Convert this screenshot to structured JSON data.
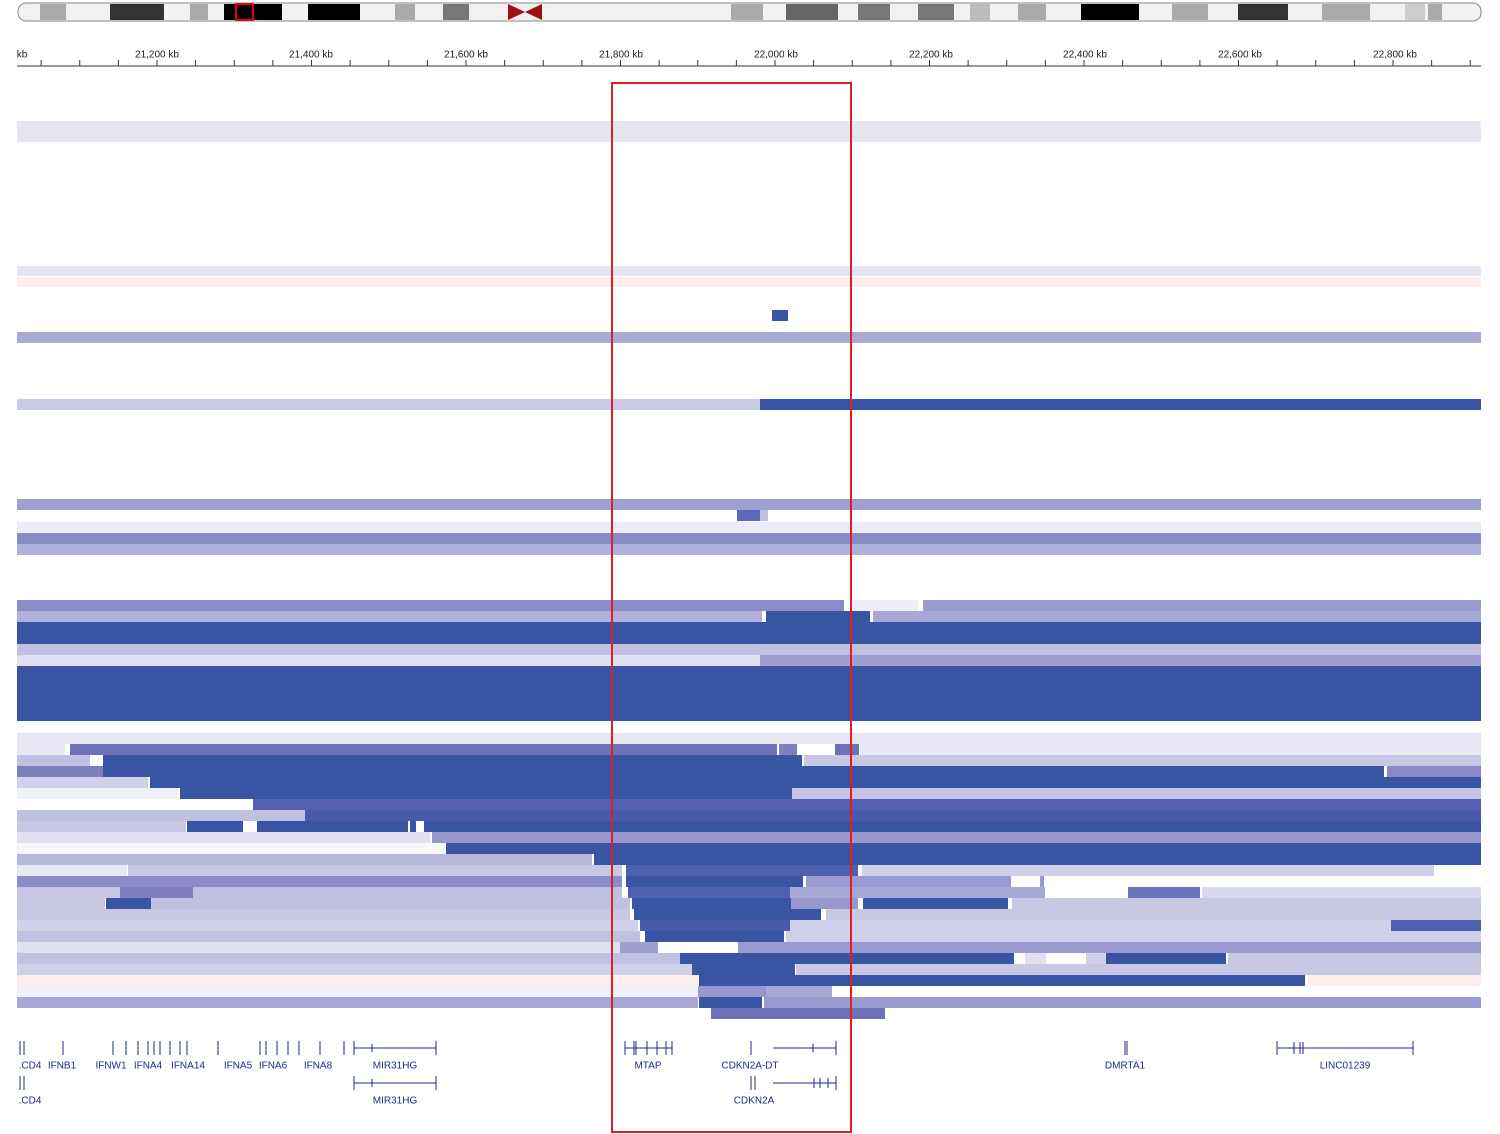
{
  "ruler": {
    "labels": [
      "kb",
      "21,200 kb",
      "21,400 kb",
      "21,600 kb",
      "21,800 kb",
      "22,000 kb",
      "22,200 kb",
      "22,400 kb",
      "22,600 kb",
      "22,800 kb"
    ]
  },
  "genes": {
    "row1": [
      ".CD4",
      "IFNB1",
      "IFNW1",
      "IFNA4",
      "IFNA14",
      "IFNA5",
      "IFNA6",
      "IFNA8",
      "MIR31HG",
      "MTAP",
      "CDKN2A-DT",
      "DMRTA1",
      "LINC01239"
    ],
    "row2": [
      ".CD4",
      "MIR31HG",
      "CDKN2A"
    ]
  }
}
